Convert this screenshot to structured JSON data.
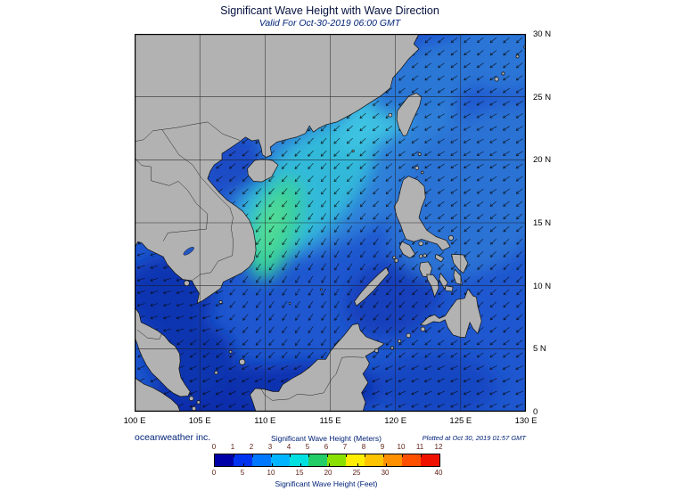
{
  "header": {
    "title": "Significant Wave Height with Wave Direction",
    "subtitle": "Valid For Oct-30-2019 06:00 GMT"
  },
  "axes": {
    "x_ticks": [
      "100 E",
      "105 E",
      "110 E",
      "115 E",
      "120 E",
      "125 E",
      "130 E"
    ],
    "x_lons": [
      100,
      105,
      110,
      115,
      120,
      125,
      130
    ],
    "y_ticks": [
      "30 N",
      "25 N",
      "20 N",
      "15 N",
      "10 N",
      "5 N",
      "0"
    ],
    "y_lats": [
      30,
      25,
      20,
      15,
      10,
      5,
      0
    ]
  },
  "footer": {
    "credit": "oceanweather inc.",
    "plotted": "Plotted at Oct 30, 2019 01:57 GMT"
  },
  "legend": {
    "meters_title": "Significant Wave Height (Meters)",
    "feet_title": "Significant Wave Height (Feet)",
    "meters_ticks": [
      "0",
      "1",
      "2",
      "3",
      "4",
      "5",
      "6",
      "7",
      "8",
      "9",
      "10",
      "11",
      "12"
    ],
    "feet_ticks": [
      "0",
      "5",
      "10",
      "15",
      "20",
      "25",
      "30",
      "40"
    ],
    "band_colors": [
      "#0000a8",
      "#0033f0",
      "#0077ff",
      "#00b4ff",
      "#00e0e0",
      "#22cc66",
      "#8ae000",
      "#ffee00",
      "#ffc400",
      "#ff9000",
      "#ff5000",
      "#f01000"
    ]
  },
  "map": {
    "ocean_color": "#1e57cf",
    "land_color": "#b2b2b2",
    "grid_color": "#1a1a1a",
    "arrow_color": "#0a0a0a"
  },
  "chart_data": {
    "type": "heatmap",
    "title": "Significant Wave Height with Wave Direction",
    "valid_for": "Oct-30-2019 06:00 GMT",
    "lon_range_deg_e": [
      100,
      130
    ],
    "lat_range_deg_n": [
      0,
      30
    ],
    "colorbar_meters": [
      0,
      1,
      2,
      3,
      4,
      5,
      6,
      7,
      8,
      9,
      10,
      11,
      12
    ],
    "colorbar_feet": [
      0,
      5,
      10,
      15,
      20,
      25,
      30,
      40
    ],
    "legend_position": "bottom-center"
  }
}
